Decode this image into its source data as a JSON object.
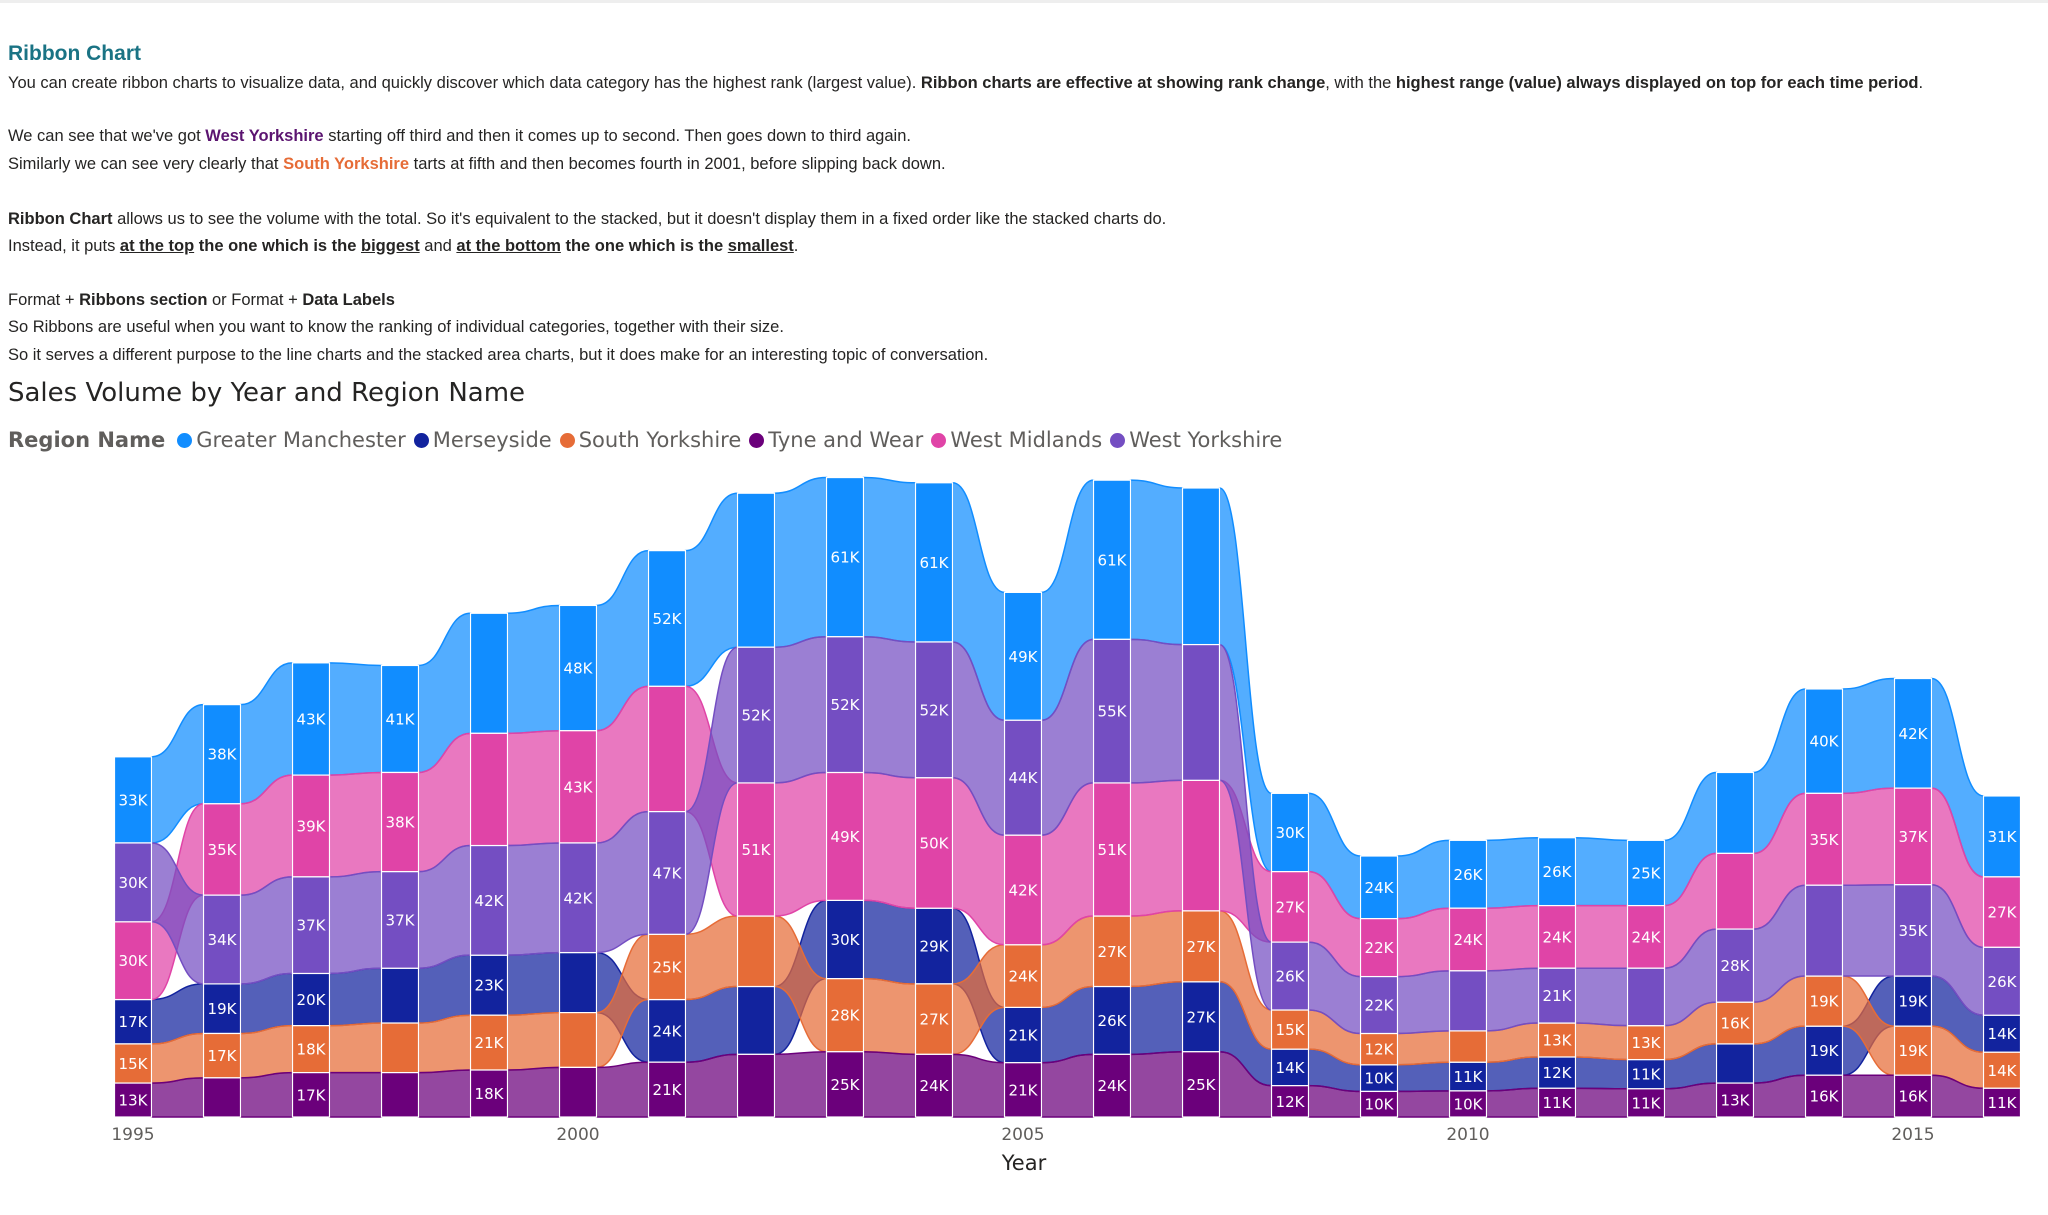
{
  "text": {
    "title": "Ribbon Chart",
    "lines": [
      [
        {
          "text": "You can create ribbon charts to visualize data, and quickly discover which data category has the highest rank (largest value). "
        },
        {
          "text": "Ribbon charts are effective at showing rank change",
          "bold": true
        },
        {
          "text": ", with the "
        },
        {
          "text": "highest range (value) always displayed on top for each time period",
          "bold": true
        },
        {
          "text": "."
        }
      ],
      [
        {
          "text": "We can see that we've got "
        },
        {
          "text": "West Yorkshire",
          "bold": true,
          "color": "#5b1470"
        },
        {
          "text": " starting off third and then it comes up to second. Then goes down to third again."
        }
      ],
      [
        {
          "text": "Similarly we can see very clearly that "
        },
        {
          "text": "South Yorkshire",
          "bold": true,
          "color": "#e66c37"
        },
        {
          "text": " tarts at fifth and then becomes fourth in 2001, before slipping back down."
        }
      ],
      [
        {
          "text": "Ribbon Chart",
          "bold": true
        },
        {
          "text": " allows us to see the volume with the total. So it's equivalent to the stacked, but it doesn't display them in a fixed order like the stacked charts do."
        }
      ],
      [
        {
          "text": "Instead, it puts "
        },
        {
          "text": "at the top",
          "bold": true,
          "underline": true
        },
        {
          "text": " the one which is the ",
          "bold": true
        },
        {
          "text": "biggest",
          "bold": true,
          "underline": true
        },
        {
          "text": " and "
        },
        {
          "text": "at the bottom",
          "bold": true,
          "underline": true
        },
        {
          "text": " the one which is the ",
          "bold": true
        },
        {
          "text": "smallest",
          "bold": true,
          "underline": true
        },
        {
          "text": "."
        }
      ],
      [
        {
          "text": "Format + "
        },
        {
          "text": "Ribbons section",
          "bold": true
        },
        {
          "text": " or Format + "
        },
        {
          "text": "Data Labels",
          "bold": true
        }
      ],
      [
        {
          "text": "So Ribbons are useful when you want to know the ranking of individual categories, together with their size."
        }
      ],
      [
        {
          "text": "So it serves a different purpose to the line charts and the stacked area charts, but it does make for an interesting topic of conversation."
        }
      ]
    ]
  },
  "chart_data": {
    "type": "ribbon",
    "title": "Sales Volume by Year and Region Name",
    "legend_title": "Region Name",
    "x_label": "Year",
    "x": [
      1995,
      1996,
      1997,
      1998,
      1999,
      2000,
      2001,
      2002,
      2003,
      2004,
      2005,
      2006,
      2007,
      2008,
      2009,
      2010,
      2011,
      2012,
      2013,
      2014,
      2015,
      2016
    ],
    "xlim": [
      1995,
      2016
    ],
    "xticks": [
      1995,
      2000,
      2005,
      2010,
      2015
    ],
    "series": [
      {
        "name": "Greater Manchester",
        "color": "#118dff",
        "values": [
          33000,
          38000,
          43000,
          41000,
          46000,
          48000,
          52000,
          59000,
          61000,
          61000,
          49000,
          61000,
          60000,
          30000,
          24000,
          26000,
          26000,
          25000,
          31000,
          40000,
          42000,
          31000
        ],
        "value_labels": [
          "33K",
          "38K",
          "43K",
          "41K",
          null,
          "48K",
          "52K",
          null,
          "61K",
          "61K",
          "49K",
          "61K",
          null,
          "30K",
          "24K",
          "26K",
          "26K",
          "25K",
          null,
          "40K",
          "42K",
          "31K"
        ]
      },
      {
        "name": "Merseyside",
        "color": "#12239e",
        "values": [
          17000,
          19000,
          20000,
          21000,
          23000,
          23000,
          24000,
          26000,
          30000,
          29000,
          21200,
          26000,
          26800,
          14000,
          10200,
          11000,
          12000,
          11200,
          15000,
          18800,
          19200,
          14200
        ],
        "value_labels": [
          "17K",
          "19K",
          "20K",
          null,
          "23K",
          null,
          "24K",
          null,
          "30K",
          "29K",
          "21K",
          "26K",
          "27K",
          "14K",
          "10K",
          "11K",
          "12K",
          "11K",
          null,
          "19K",
          "19K",
          "14K"
        ]
      },
      {
        "name": "South Yorkshire",
        "color": "#e66c37",
        "values": [
          15000,
          17000,
          18000,
          19000,
          21000,
          21000,
          25000,
          27000,
          28000,
          27000,
          24000,
          27000,
          27200,
          15000,
          12000,
          12000,
          13000,
          13000,
          16000,
          19200,
          18800,
          13800
        ],
        "value_labels": [
          "15K",
          "17K",
          "18K",
          null,
          "21K",
          null,
          "25K",
          null,
          "28K",
          "27K",
          "24K",
          "27K",
          "27K",
          "15K",
          "12K",
          null,
          "13K",
          "13K",
          "16K",
          "19K",
          "19K",
          "14K"
        ]
      },
      {
        "name": "Tyne and Wear",
        "color": "#6b007b",
        "values": [
          13000,
          15000,
          17000,
          17000,
          18000,
          19000,
          21000,
          24000,
          25000,
          24000,
          20800,
          24000,
          25000,
          12000,
          9800,
          10000,
          11000,
          10800,
          13000,
          16000,
          16000,
          11000
        ],
        "value_labels": [
          "13K",
          null,
          "17K",
          null,
          "18K",
          null,
          "21K",
          null,
          "25K",
          "24K",
          "21K",
          "24K",
          "25K",
          "12K",
          "10K",
          "10K",
          "11K",
          "11K",
          "13K",
          "16K",
          "16K",
          "11K"
        ]
      },
      {
        "name": "West Midlands",
        "color": "#e044a7",
        "values": [
          29800,
          35000,
          39000,
          38000,
          43000,
          43000,
          48000,
          51000,
          49000,
          50000,
          42000,
          51000,
          50000,
          27000,
          22200,
          24000,
          24000,
          24000,
          29000,
          35200,
          37000,
          27000
        ],
        "value_labels": [
          "30K",
          "35K",
          "39K",
          "38K",
          null,
          "43K",
          null,
          "51K",
          "49K",
          "50K",
          "42K",
          "51K",
          null,
          "27K",
          "22K",
          "24K",
          "24K",
          "24K",
          null,
          "35K",
          "37K",
          "27K"
        ]
      },
      {
        "name": "West Yorkshire",
        "color": "#744ec2",
        "values": [
          30200,
          34000,
          37000,
          37000,
          42000,
          42000,
          47000,
          52000,
          52000,
          52000,
          44000,
          55000,
          52000,
          26000,
          21800,
          23000,
          21000,
          22000,
          28000,
          34800,
          35000,
          26000
        ],
        "value_labels": [
          "30K",
          "34K",
          "37K",
          "37K",
          "42K",
          "42K",
          "47K",
          "52K",
          "52K",
          "52K",
          "44K",
          "55K",
          null,
          "26K",
          "22K",
          null,
          "21K",
          null,
          "28K",
          null,
          "35K",
          "26K"
        ]
      }
    ]
  }
}
